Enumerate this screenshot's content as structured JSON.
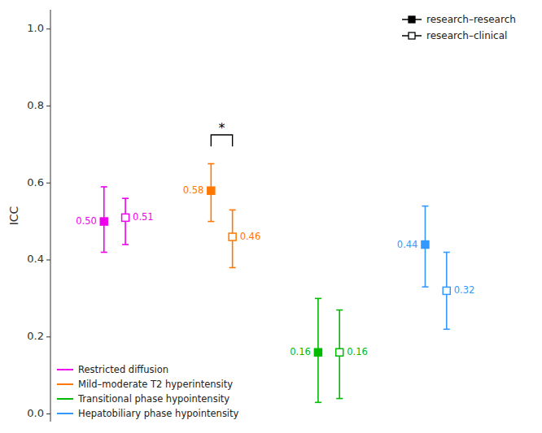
{
  "chart_data": {
    "type": "errorbar",
    "y_label": "ICC",
    "categories": [
      "Restricted diffusion",
      "Mild–moderate T2 hyperintensity",
      "Transitional phase hypointensity",
      "Hepatobiliary phase hypointensity"
    ],
    "colors": [
      "#EE00EE",
      "#FF7700",
      "#00BB00",
      "#3399FF"
    ],
    "series": [
      {
        "name": "research–research",
        "marker": "square",
        "values": [
          0.5,
          0.58,
          0.16,
          0.44
        ],
        "lower": [
          0.42,
          0.5,
          0.03,
          0.33
        ],
        "upper": [
          0.59,
          0.65,
          0.3,
          0.54
        ],
        "value_labels": [
          "0.50",
          "0.58",
          "0.16",
          "0.44"
        ]
      },
      {
        "name": "research–clinical",
        "marker": "open-square",
        "values": [
          0.51,
          0.46,
          0.16,
          0.32
        ],
        "lower": [
          0.44,
          0.38,
          0.04,
          0.22
        ],
        "upper": [
          0.56,
          0.53,
          0.27,
          0.42
        ],
        "value_labels": [
          "0.51",
          "0.46",
          "0.16",
          "0.32"
        ]
      }
    ],
    "annotations": [
      {
        "text": "*",
        "category": "Mild–moderate T2 hyperintensity",
        "y": 0.725,
        "drop": 0.03
      }
    ],
    "ylim": [
      -0.02,
      1.05
    ],
    "yticks": [
      {
        "value": 0.0,
        "label": "0.0"
      },
      0.2,
      0.4,
      0.6,
      0.8,
      {
        "value": 1.0,
        "label": "1.0"
      }
    ],
    "data_labels": true,
    "tick_labels": "y",
    "legend": "upper right"
  }
}
